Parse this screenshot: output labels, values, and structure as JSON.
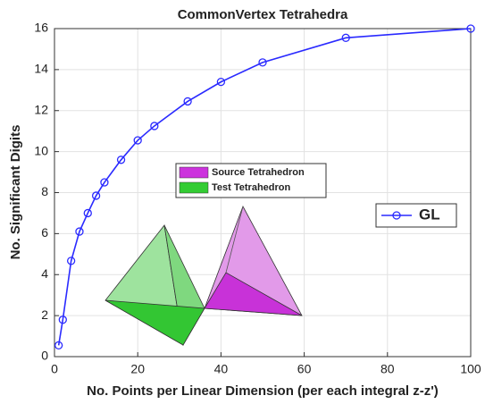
{
  "chart_data": {
    "type": "line",
    "title": "CommonVertex Tetrahedra",
    "x_label": "No. Points per Linear Dimension (per each integral z-z')",
    "y_label": "No. Significant Digits",
    "x": [
      1,
      2,
      4,
      6,
      8,
      10,
      12,
      16,
      20,
      24,
      32,
      40,
      50,
      70,
      100
    ],
    "series": [
      {
        "name": "GL",
        "color": "#2a2aff",
        "values": [
          0.55,
          1.8,
          4.67,
          6.1,
          7.0,
          7.85,
          8.5,
          9.6,
          10.55,
          11.25,
          12.45,
          13.4,
          14.35,
          15.55,
          16.0
        ]
      }
    ],
    "xlim": [
      0,
      100
    ],
    "xticks": [
      0,
      20,
      40,
      60,
      80,
      100
    ],
    "ylim": [
      0,
      16
    ],
    "yticks": [
      0,
      2,
      4,
      6,
      8,
      10,
      12,
      14,
      16
    ],
    "grid": true,
    "legend": "right",
    "inset_legend": [
      {
        "label": "Source Tetrahedron",
        "color": "#cc33dd"
      },
      {
        "label": "Test Tetrahedron",
        "color": "#33cc33"
      }
    ]
  }
}
